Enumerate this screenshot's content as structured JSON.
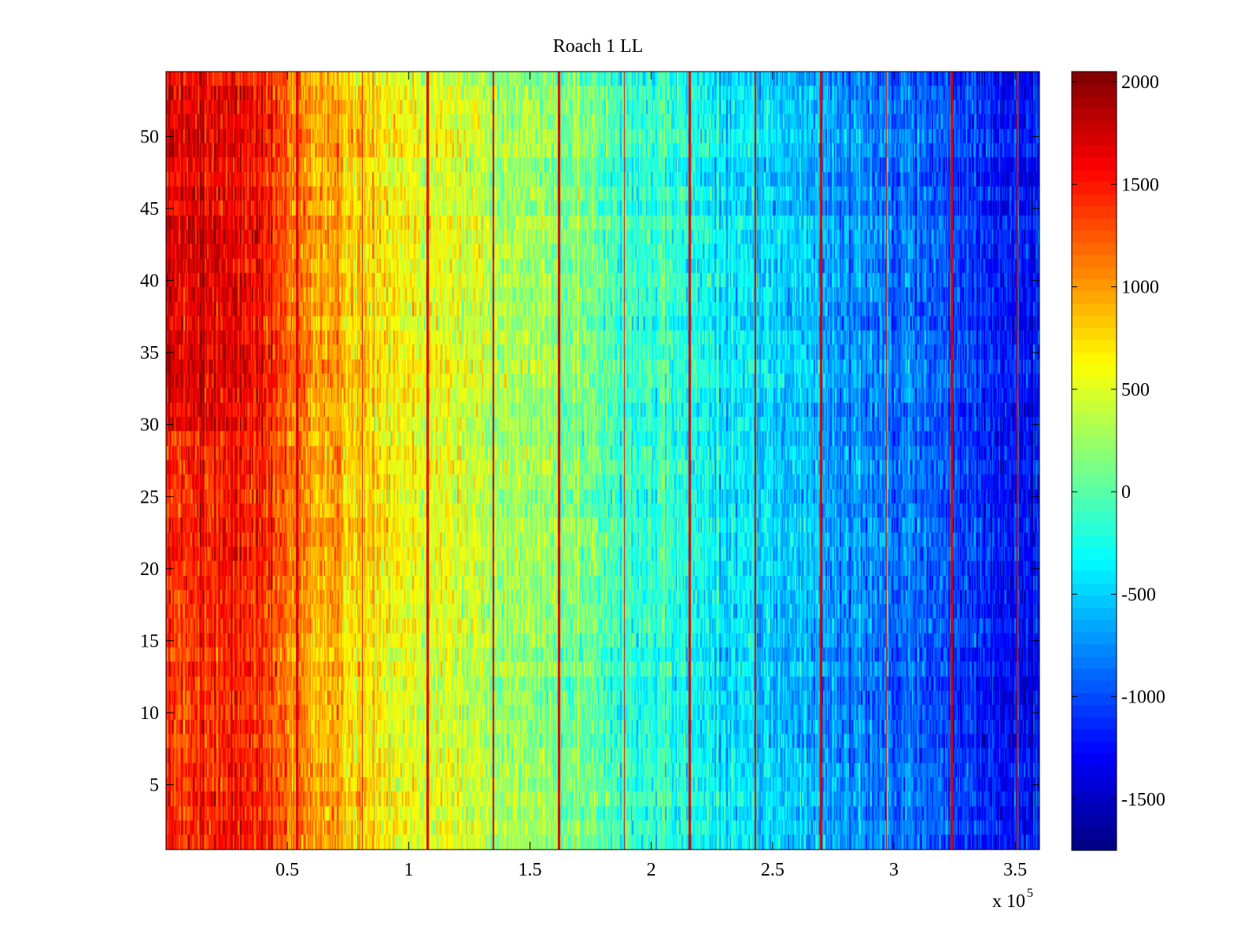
{
  "chart_data": {
    "type": "heatmap",
    "title": "Roach 1 LL",
    "xlabel": "",
    "ylabel": "",
    "x_multiplier_label": "x 10",
    "x_multiplier_exponent": "5",
    "xlim": [
      0,
      3.6
    ],
    "ylim": [
      0.5,
      54.5
    ],
    "n_rows": 54,
    "x_ticks": [
      0.5,
      1,
      1.5,
      2,
      2.5,
      3,
      3.5
    ],
    "x_tick_labels": [
      "0.5",
      "1",
      "1.5",
      "2",
      "2.5",
      "3",
      "3.5"
    ],
    "y_ticks": [
      5,
      10,
      15,
      20,
      25,
      30,
      35,
      40,
      45,
      50
    ],
    "y_tick_labels": [
      "5",
      "10",
      "15",
      "20",
      "25",
      "30",
      "35",
      "40",
      "45",
      "50"
    ],
    "colormap": "jet",
    "clim": [
      -1750,
      2050
    ],
    "colorbar_ticks": [
      2000,
      1500,
      1000,
      500,
      0,
      -500,
      -1000,
      -1500
    ],
    "colorbar_tick_labels": [
      "2000",
      "1500",
      "1000",
      "500",
      "0",
      "-500",
      "-1000",
      "-1500"
    ],
    "trend": {
      "description": "Values decrease from left to right, with noise and periodic bright vertical lines",
      "x_profile": [
        [
          0,
          1400
        ],
        [
          0.3,
          1500
        ],
        [
          0.6,
          1000
        ],
        [
          1.0,
          600
        ],
        [
          1.5,
          250
        ],
        [
          2.0,
          -150
        ],
        [
          2.5,
          -500
        ],
        [
          3.0,
          -800
        ],
        [
          3.6,
          -1300
        ]
      ],
      "vertical_line_positions": [
        0.27,
        0.54,
        0.81,
        1.08,
        1.35,
        1.62,
        1.89,
        2.16,
        2.43,
        2.7,
        2.97,
        3.24,
        3.51
      ],
      "vertical_line_value": 1700
    }
  }
}
